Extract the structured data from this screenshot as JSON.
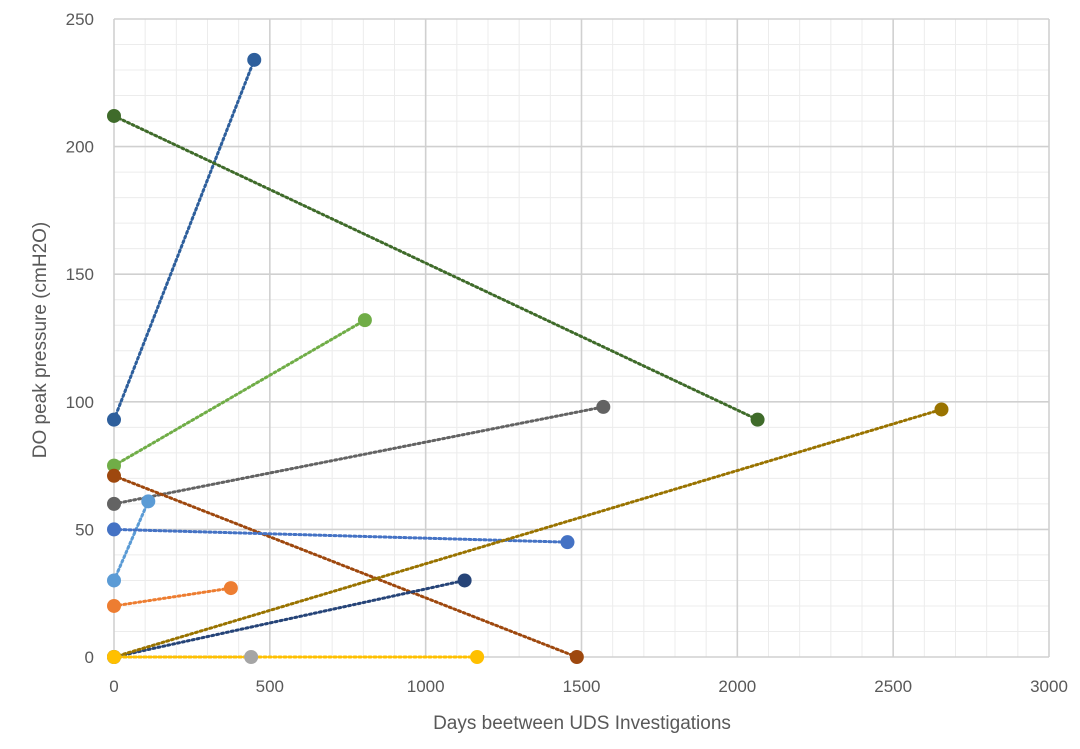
{
  "chart_data": {
    "type": "scatter",
    "xlabel": "Days beetween UDS Investigations",
    "ylabel": "DO peak pressure (cmH2O)",
    "xlim": [
      0,
      3000
    ],
    "ylim": [
      0,
      250
    ],
    "x_ticks": [
      "0",
      "500",
      "1000",
      "1500",
      "2000",
      "2500",
      "3000"
    ],
    "y_ticks": [
      "0",
      "50",
      "100",
      "150",
      "200",
      "250"
    ],
    "grid": true,
    "minor_grid": true,
    "legend": "none",
    "series": [
      {
        "color": "#2e5f9c",
        "points": [
          {
            "x": 0,
            "y": 93
          },
          {
            "x": 450,
            "y": 234
          }
        ]
      },
      {
        "color": "#3f6b2a",
        "points": [
          {
            "x": 0,
            "y": 212
          },
          {
            "x": 2065,
            "y": 93
          }
        ]
      },
      {
        "color": "#70ad47",
        "points": [
          {
            "x": 0,
            "y": 75
          },
          {
            "x": 805,
            "y": 132
          }
        ]
      },
      {
        "color": "#636363",
        "points": [
          {
            "x": 0,
            "y": 60
          },
          {
            "x": 1570,
            "y": 98
          }
        ]
      },
      {
        "color": "#9e480e",
        "points": [
          {
            "x": 0,
            "y": 71
          },
          {
            "x": 1485,
            "y": 0
          }
        ]
      },
      {
        "color": "#5b9bd5",
        "points": [
          {
            "x": 0,
            "y": 30
          },
          {
            "x": 110,
            "y": 61
          }
        ]
      },
      {
        "color": "#4472c4",
        "points": [
          {
            "x": 0,
            "y": 50
          },
          {
            "x": 1455,
            "y": 45
          }
        ]
      },
      {
        "color": "#ed7d31",
        "points": [
          {
            "x": 0,
            "y": 20
          },
          {
            "x": 375,
            "y": 27
          }
        ]
      },
      {
        "color": "#264478",
        "points": [
          {
            "x": 0,
            "y": 0
          },
          {
            "x": 1125,
            "y": 30
          }
        ]
      },
      {
        "color": "#997300",
        "points": [
          {
            "x": 0,
            "y": 0
          },
          {
            "x": 2655,
            "y": 97
          }
        ]
      },
      {
        "color": "#a5a5a5",
        "points": [
          {
            "x": 0,
            "y": 0
          },
          {
            "x": 440,
            "y": 0
          }
        ]
      },
      {
        "color": "#ffc000",
        "points": [
          {
            "x": 0,
            "y": 0
          },
          {
            "x": 1165,
            "y": 0
          }
        ]
      }
    ]
  }
}
